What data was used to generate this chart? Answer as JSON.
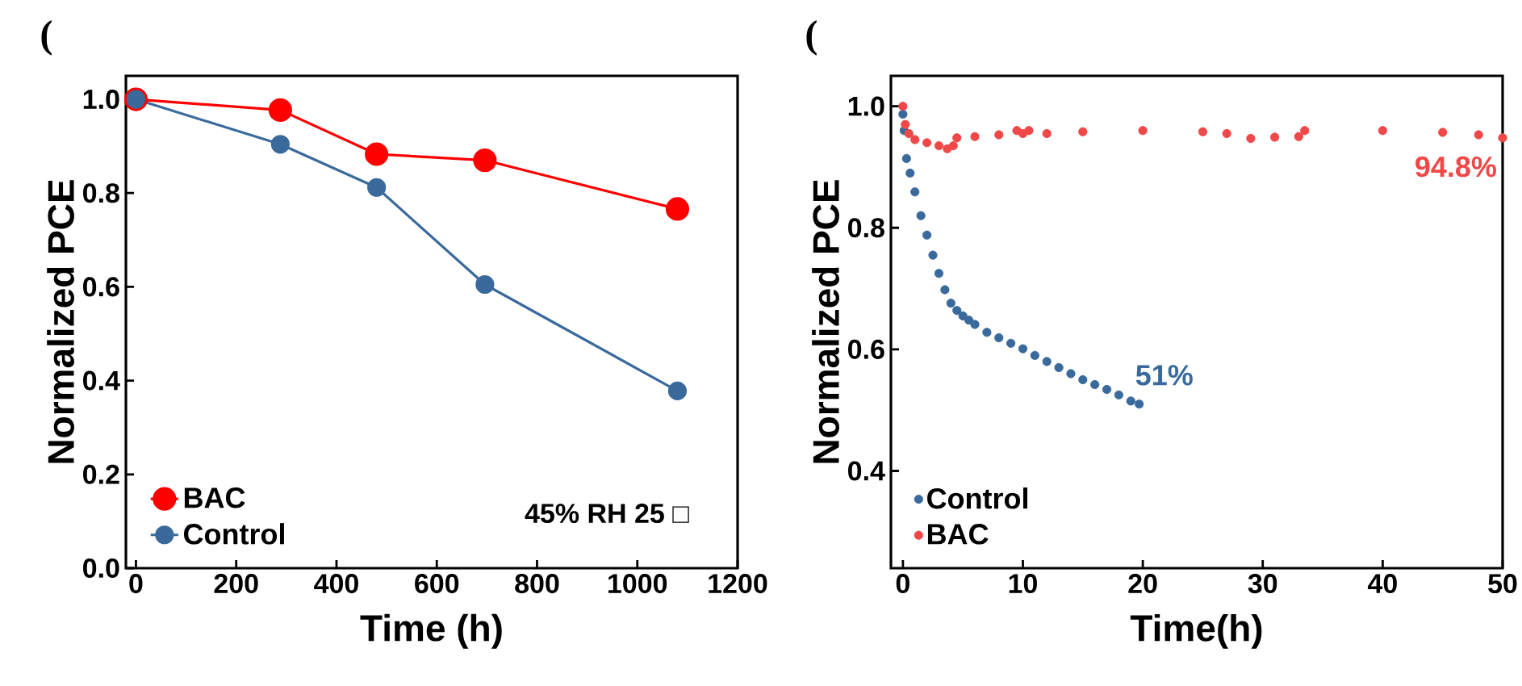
{
  "chart_data": [
    {
      "type": "line",
      "title": "(",
      "xlabel": "Time (h)",
      "ylabel": "Normalized PCE",
      "xlim": [
        -20,
        1200
      ],
      "ylim": [
        0,
        1.05
      ],
      "xticks": [
        0,
        200,
        400,
        600,
        800,
        1000,
        1200
      ],
      "yticks": [
        {
          "value": 0,
          "label": "0.0"
        },
        {
          "value": 0.2,
          "label": "0.2"
        },
        {
          "value": 0.4,
          "label": "0.4"
        },
        {
          "value": 0.6,
          "label": "0.6"
        },
        {
          "value": 0.8,
          "label": "0.8"
        },
        {
          "value": 1,
          "label": "1.0"
        }
      ],
      "marker": "circle",
      "legend": "bottom left",
      "annotations": [
        "45% RH  25 □"
      ],
      "series": [
        {
          "name": "BAC",
          "color": "#ff0000",
          "x": [
            0,
            288,
            480,
            696,
            1080
          ],
          "values": [
            1.0,
            0.977,
            0.883,
            0.87,
            0.766
          ]
        },
        {
          "name": "Control",
          "color": "#3a6a9c",
          "x": [
            0,
            288,
            480,
            696,
            1080
          ],
          "values": [
            1.0,
            0.904,
            0.812,
            0.605,
            0.378
          ]
        }
      ]
    },
    {
      "type": "scatter",
      "title": "(",
      "xlabel": "Time(h)",
      "ylabel": "Normalized PCE",
      "xlim": [
        -1,
        50
      ],
      "ylim": [
        0.24,
        1.05
      ],
      "xticks": [
        0,
        10,
        20,
        30,
        40,
        50
      ],
      "yticks": [
        {
          "value": 0.4,
          "label": "0.4"
        },
        {
          "value": 0.6,
          "label": "0.6"
        },
        {
          "value": 0.8,
          "label": "0.8"
        },
        {
          "value": 1,
          "label": "1.0"
        }
      ],
      "marker": "circle",
      "legend": "bottom left",
      "annotations": [
        {
          "text": "51%",
          "x": 19.7,
          "y": 0.51
        },
        {
          "text": "94.8%",
          "x": 50,
          "y": 0.948
        }
      ],
      "series": [
        {
          "name": "Control",
          "color": "#3a6a9c",
          "x": [
            0,
            0.1,
            0.3,
            0.6,
            1,
            1.5,
            2,
            2.5,
            3,
            3.5,
            4,
            4.5,
            5,
            5.5,
            6,
            7,
            8,
            9,
            10,
            11,
            12,
            13,
            14,
            15,
            16,
            17,
            18,
            19,
            19.7
          ],
          "values": [
            0.987,
            0.96,
            0.914,
            0.89,
            0.859,
            0.82,
            0.788,
            0.755,
            0.725,
            0.698,
            0.676,
            0.664,
            0.655,
            0.648,
            0.641,
            0.628,
            0.619,
            0.61,
            0.601,
            0.59,
            0.58,
            0.57,
            0.56,
            0.55,
            0.542,
            0.534,
            0.525,
            0.515,
            0.51
          ]
        },
        {
          "name": "BAC",
          "color": "#f04848",
          "x": [
            0,
            0.2,
            0.5,
            1,
            2,
            3,
            3.7,
            4.2,
            4.5,
            6,
            8,
            9.5,
            10,
            10.5,
            12,
            15,
            20,
            25,
            27,
            29,
            31,
            33,
            33.5,
            40,
            45,
            48,
            50
          ],
          "values": [
            1.0,
            0.97,
            0.955,
            0.945,
            0.94,
            0.935,
            0.93,
            0.935,
            0.948,
            0.95,
            0.953,
            0.96,
            0.955,
            0.96,
            0.955,
            0.958,
            0.96,
            0.958,
            0.955,
            0.947,
            0.949,
            0.95,
            0.96,
            0.96,
            0.957,
            0.953,
            0.948
          ]
        }
      ]
    }
  ]
}
